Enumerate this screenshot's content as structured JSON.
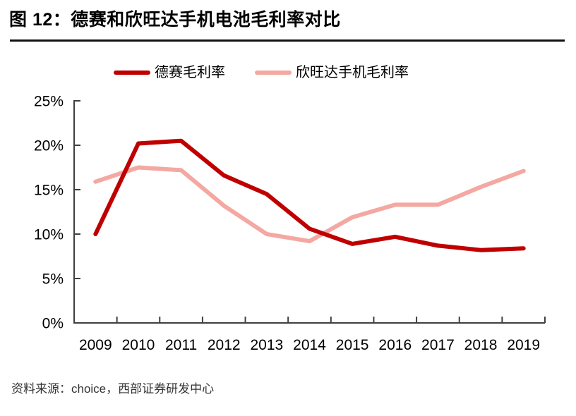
{
  "figure": {
    "title": "图 12：德赛和欣旺达手机电池毛利率对比",
    "source": "资料来源：choice，西部证券研发中心"
  },
  "chart_data": {
    "type": "line",
    "title": "德赛和欣旺达手机电池毛利率对比",
    "categories": [
      "2009",
      "2010",
      "2011",
      "2012",
      "2013",
      "2014",
      "2015",
      "2016",
      "2017",
      "2018",
      "2019"
    ],
    "series": [
      {
        "name": "德赛毛利率",
        "color": "#C00000",
        "values": [
          10.0,
          20.2,
          20.5,
          16.6,
          14.5,
          10.6,
          8.9,
          9.7,
          8.7,
          8.2,
          8.4
        ]
      },
      {
        "name": "欣旺达手机毛利率",
        "color": "#F4A8A2",
        "values": [
          15.9,
          17.5,
          17.2,
          13.2,
          10.0,
          9.2,
          11.9,
          13.3,
          13.3,
          15.3,
          17.1
        ]
      }
    ],
    "xlabel": "",
    "ylabel": "",
    "ylim": [
      0,
      25
    ],
    "yticks": [
      0,
      5,
      10,
      15,
      20,
      25
    ],
    "ytick_labels": [
      "0%",
      "5%",
      "10%",
      "15%",
      "20%",
      "25%"
    ],
    "grid": false,
    "legend_position": "top",
    "axis_color": "#3f3f3f",
    "tick_label_color": "#000000"
  }
}
